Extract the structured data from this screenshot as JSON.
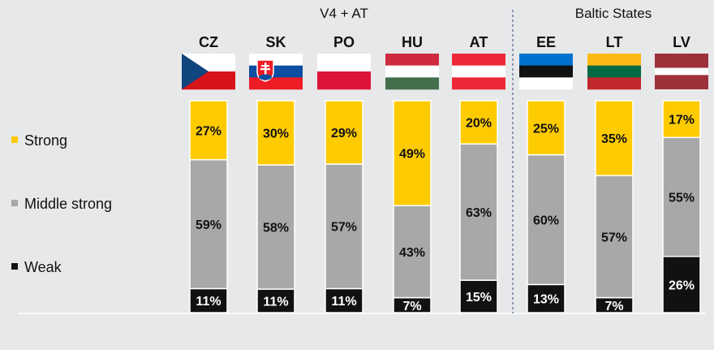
{
  "chart_data": {
    "type": "bar",
    "stacked": true,
    "groups": [
      {
        "label": "V4 + AT",
        "categories": [
          "CZ",
          "SK",
          "PO",
          "HU",
          "AT"
        ]
      },
      {
        "label": "Baltic States",
        "categories": [
          "EE",
          "LT",
          "LV"
        ]
      }
    ],
    "categories": [
      "CZ",
      "SK",
      "PO",
      "HU",
      "AT",
      "EE",
      "LT",
      "LV"
    ],
    "series": [
      {
        "name": "Weak",
        "color": "#111111",
        "values": [
          11,
          11,
          11,
          7,
          15,
          13,
          7,
          26
        ],
        "labels": [
          "11%",
          "11%",
          "11%",
          "7%",
          "15%",
          "13%",
          "7%",
          "26%"
        ]
      },
      {
        "name": "Middle strong",
        "color": "#a8a8a8",
        "values": [
          59,
          58,
          57,
          43,
          63,
          60,
          57,
          55
        ],
        "labels": [
          "59%",
          "58%",
          "57%",
          "43%",
          "63%",
          "60%",
          "57%",
          "55%"
        ]
      },
      {
        "name": "Strong",
        "color": "#fecb00",
        "values": [
          27,
          30,
          29,
          49,
          20,
          25,
          35,
          17
        ],
        "labels": [
          "27%",
          "30%",
          "29%",
          "49%",
          "20%",
          "25%",
          "35%",
          "17%"
        ]
      }
    ],
    "legend_order": [
      "Strong",
      "Middle strong",
      "Weak"
    ],
    "legend_position": "left",
    "flags": [
      "cz-flag-icon",
      "sk-flag-icon",
      "pl-flag-icon",
      "hu-flag-icon",
      "at-flag-icon",
      "ee-flag-icon",
      "lt-flag-icon",
      "lv-flag-icon"
    ],
    "ylim": [
      0,
      100
    ],
    "grid": false
  }
}
